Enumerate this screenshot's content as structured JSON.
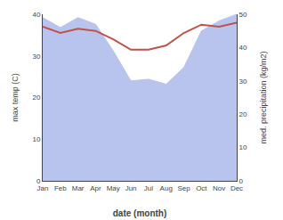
{
  "chart_data": {
    "type": "line",
    "categories": [
      "Jan",
      "Feb",
      "Mar",
      "Apr",
      "May",
      "Jun",
      "Jul",
      "Aug",
      "Sep",
      "Oct",
      "Nov",
      "Dec"
    ],
    "xlabel": "date (month)",
    "ylabel": "max temp (C)",
    "y2label": "med. precipitation (kg/m2)",
    "series": [
      {
        "type": "line",
        "color": "#c0524a",
        "values": [
          37.0,
          35.5,
          36.5,
          36.0,
          34.0,
          31.5,
          31.5,
          32.5,
          35.5,
          37.5,
          37.0,
          38.0
        ]
      },
      {
        "type": "area",
        "axis": "y2",
        "color": "#b8c4ee",
        "values": [
          49.0,
          46.0,
          49.0,
          47.0,
          39.0,
          30.0,
          30.5,
          29.0,
          34.0,
          45.0,
          48.0,
          50.0
        ]
      }
    ],
    "ylim": [
      0,
      40
    ],
    "yticks": [
      0,
      10,
      20,
      30,
      40
    ],
    "y2lim": [
      0,
      50
    ],
    "y2ticks": [
      0,
      10,
      20,
      30,
      40,
      50
    ],
    "grid": false
  }
}
